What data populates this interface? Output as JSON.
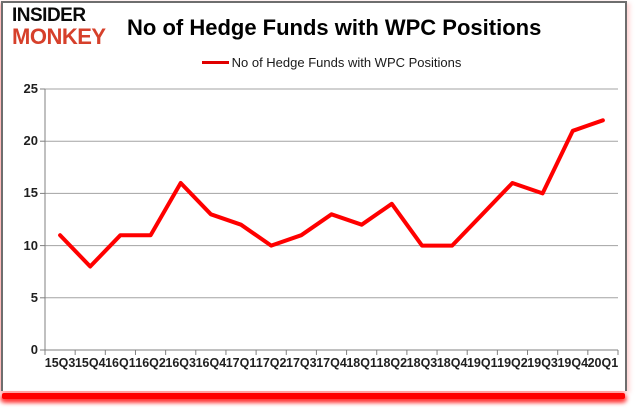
{
  "logo": {
    "line1": "INSIDER",
    "line2": "MONKEY"
  },
  "header": {
    "title": "No of Hedge Funds with WPC Positions"
  },
  "legend": {
    "label": "No of Hedge Funds with WPC Positions"
  },
  "colors": {
    "series_line": "#ff0000",
    "legend_swatch": "#e00000",
    "logo_black": "#0a0a0a",
    "logo_red": "#d6402b",
    "grid": "#a3a3a3",
    "axis": "#808080",
    "axis_text": "#1f1f1f",
    "bottom_bar": "#ff0000",
    "card_border": "#6e6e6e"
  },
  "chart_data": {
    "type": "line",
    "title": "No of Hedge Funds with WPC Positions",
    "categories": [
      "15Q3",
      "15Q4",
      "16Q1",
      "16Q2",
      "16Q3",
      "16Q4",
      "17Q1",
      "17Q2",
      "17Q3",
      "17Q4",
      "18Q1",
      "18Q2",
      "18Q3",
      "18Q4",
      "19Q1",
      "19Q2",
      "19Q3",
      "19Q4",
      "20Q1"
    ],
    "series": [
      {
        "name": "No of Hedge Funds with WPC Positions",
        "values": [
          11,
          8,
          11,
          11,
          16,
          13,
          12,
          10,
          11,
          13,
          12,
          14,
          10,
          10,
          13,
          16,
          15,
          21,
          22
        ]
      }
    ],
    "xlabel": "",
    "ylabel": "",
    "ylim": [
      0,
      25
    ],
    "ytick_step": 5,
    "grid": true,
    "legend_position": "top-center"
  }
}
